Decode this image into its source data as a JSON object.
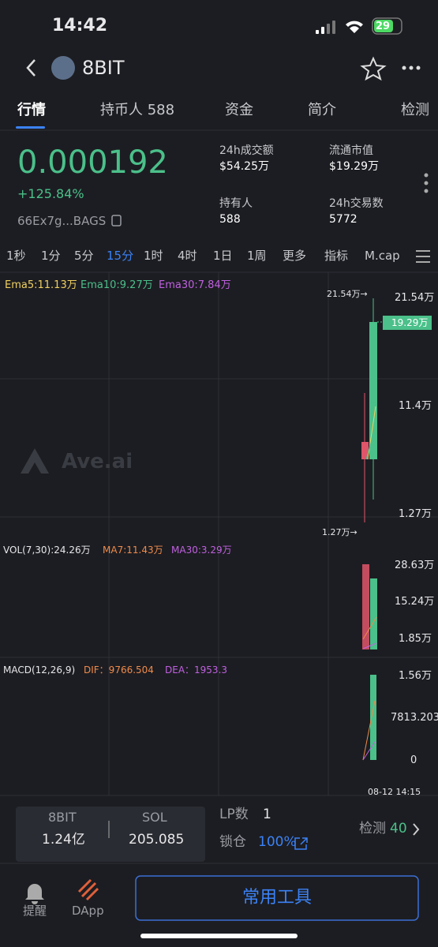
{
  "status_bar": {
    "time": "14:42",
    "battery": "29"
  },
  "header": {
    "title": "8BIT"
  },
  "tabs": [
    "行情",
    "持币人 588",
    "资金",
    "简介",
    "检测"
  ],
  "price": {
    "value": "0.000192",
    "change": "+125.84%",
    "address": "66Ex7g...BAGS"
  },
  "stats": [
    {
      "label": "24h成交额",
      "value": "$54.25万"
    },
    {
      "label": "流通市值",
      "value": "$19.29万"
    },
    {
      "label": "持有人",
      "value": "588"
    },
    {
      "label": "24h交易数",
      "value": "5772"
    }
  ],
  "intervals": [
    "1秒",
    "1分",
    "5分",
    "15分",
    "1时",
    "4时",
    "1日",
    "1周",
    "更多",
    "指标",
    "M.cap"
  ],
  "chart": {
    "legend": [
      "Ema5:11.13万",
      "Ema10:9.27万",
      "Ema30:7.84万"
    ],
    "axis": [
      "21.54万",
      "11.4万",
      "1.27万"
    ],
    "high_marker": "21.54万→",
    "low_marker": "1.27万→",
    "price_tag": "19.29万",
    "watermark": "Ave.ai"
  },
  "volume": {
    "legend": [
      "VOL(7,30):24.26万",
      "MA7:11.43万",
      "MA30:3.29万"
    ],
    "axis": [
      "28.63万",
      "15.24万",
      "1.85万"
    ]
  },
  "macd": {
    "legend": [
      "MACD(12,26,9)",
      "DIF：9766.504",
      "DEA：1953.3"
    ],
    "axis": [
      "1.56万",
      "7813.203",
      "0"
    ]
  },
  "time_label": "08-12 14:15",
  "pool": {
    "token": "8BIT",
    "token_amount": "1.24亿",
    "quote": "SOL",
    "quote_amount": "205.085"
  },
  "lp": {
    "label": "LP数",
    "value": "1",
    "lock_label": "锁仓",
    "lock_value": "100%"
  },
  "check": {
    "label": "检测",
    "value": "40"
  },
  "nav": {
    "alert": "提醒",
    "dapp": "DApp",
    "tools": "常用工具"
  }
}
